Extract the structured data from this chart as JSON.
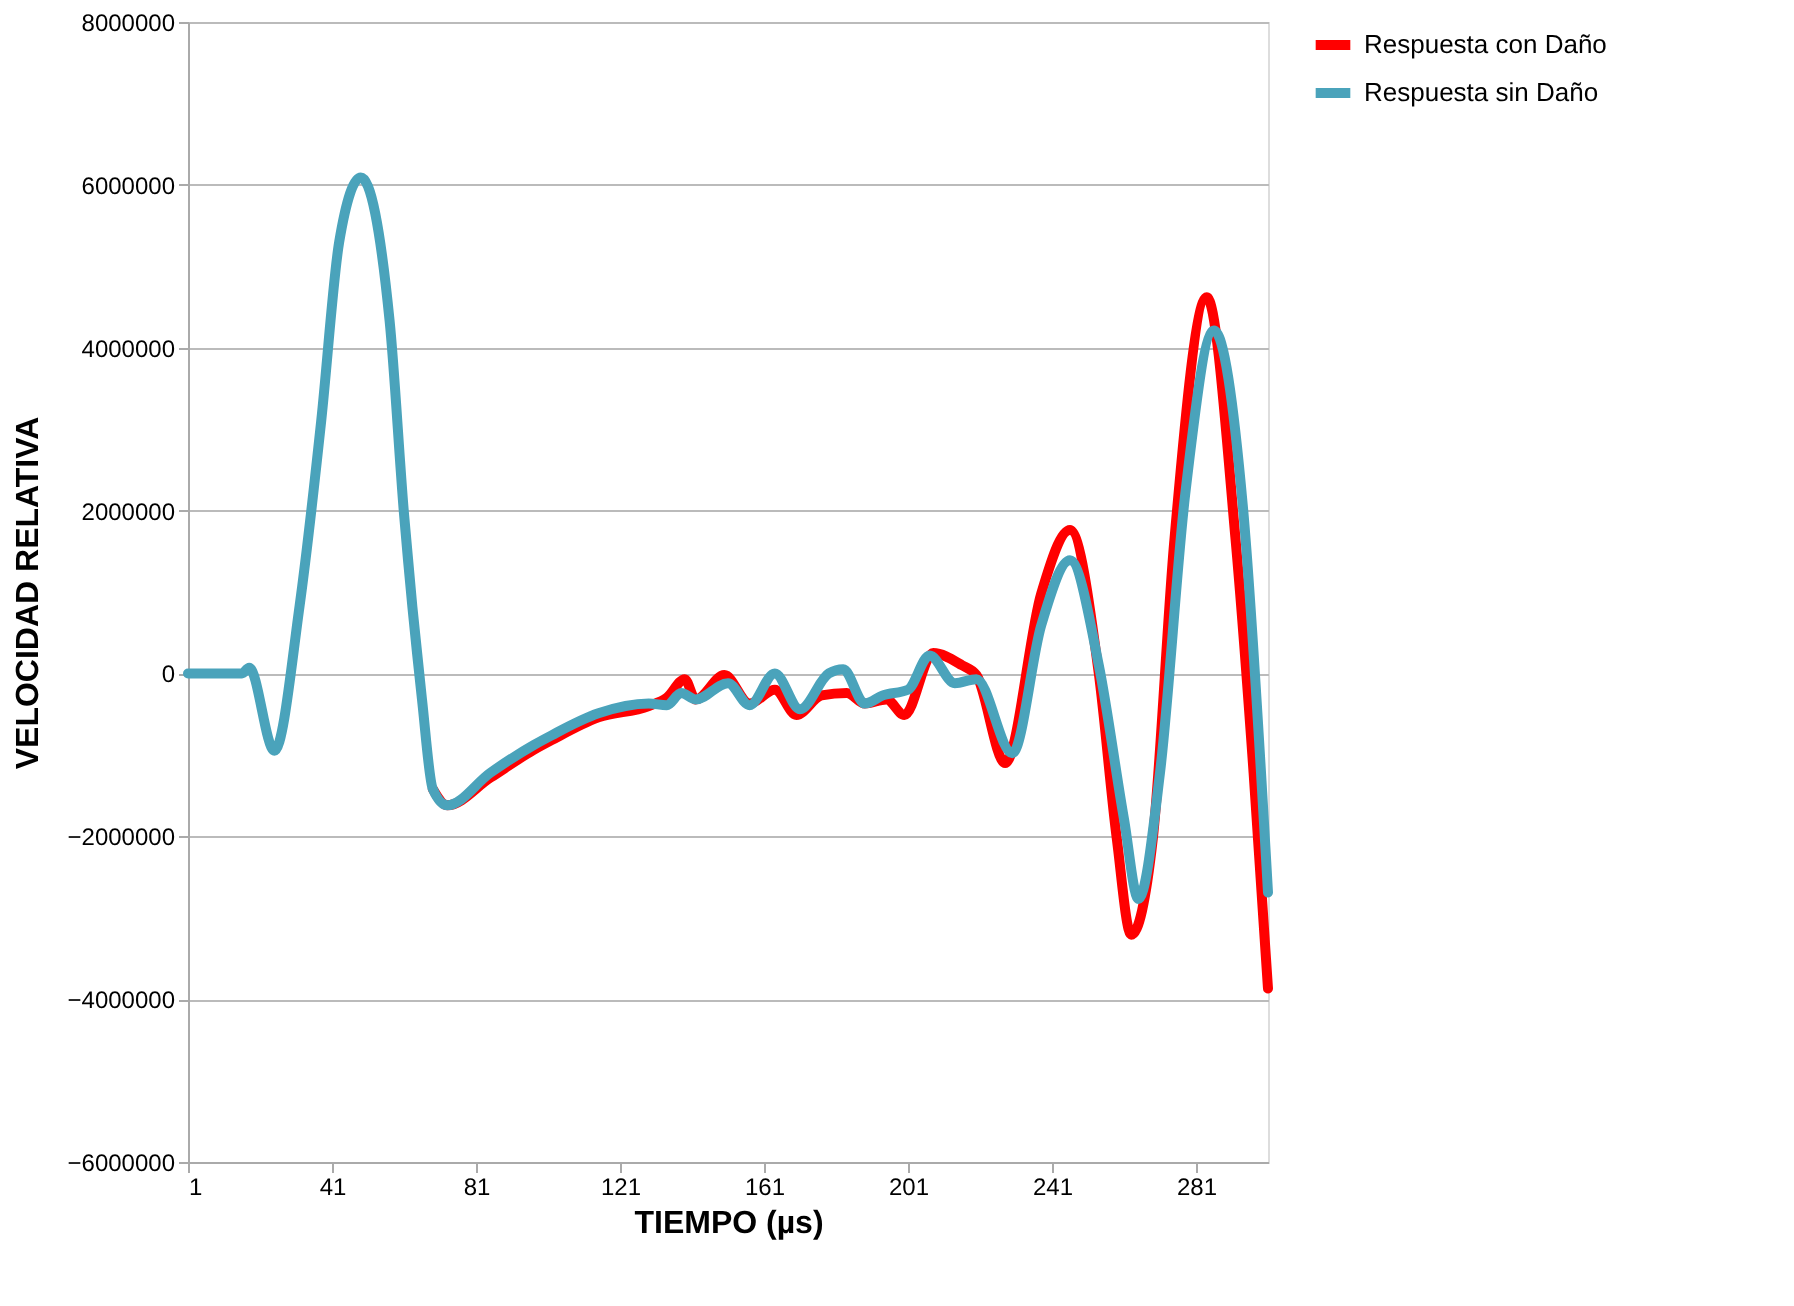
{
  "chart_data": {
    "type": "line",
    "xlabel": "TIEMPO (µs)",
    "ylabel": "VELOCIDAD RELATIVA",
    "xlim": [
      1,
      301
    ],
    "xticks": [
      1,
      41,
      81,
      121,
      161,
      201,
      241,
      281
    ],
    "ylim": [
      -6000000,
      8000000
    ],
    "yticks": [
      -6000000,
      -4000000,
      -2000000,
      0,
      2000000,
      4000000,
      6000000,
      8000000
    ],
    "grid": "y",
    "legend": "right",
    "line_style": "solid",
    "series": [
      {
        "name": "Respuesta con Daño",
        "color": "#ff0000",
        "x": [
          69,
          73,
          85,
          97,
          102,
          115,
          129,
          134,
          139,
          142,
          150,
          157,
          164,
          170,
          177,
          184,
          189,
          195,
          200,
          208,
          216,
          220,
          228,
          238,
          246,
          254,
          259,
          263,
          269,
          275,
          284,
          292,
          297,
          301
        ],
        "values": [
          -1420000,
          -1620000,
          -1280000,
          -940000,
          -820000,
          -540000,
          -400000,
          -300000,
          -70000,
          -320000,
          -20000,
          -370000,
          -200000,
          -510000,
          -270000,
          -240000,
          -370000,
          -320000,
          -510000,
          250000,
          100000,
          -20000,
          -1100000,
          980000,
          1760000,
          0,
          -2030000,
          -3210000,
          -2030000,
          1640000,
          4620000,
          1640000,
          -1220000,
          -3870000
        ]
      },
      {
        "name": "Respuesta sin Daño",
        "color": "#4aa3bb",
        "x": [
          1,
          16,
          18,
          25,
          32,
          38,
          43,
          49,
          57,
          61,
          66,
          69,
          73,
          85,
          97,
          102,
          115,
          129,
          134,
          138,
          142,
          151,
          157,
          164,
          171,
          179,
          183,
          189,
          194,
          201,
          207,
          214,
          220,
          230,
          238,
          246,
          254,
          261,
          265,
          271,
          278,
          286,
          294,
          301
        ],
        "values": [
          0,
          0,
          70000,
          -950000,
          830000,
          3100000,
          5300000,
          6090000,
          4330000,
          1960000,
          -320000,
          -1420000,
          -1620000,
          -1220000,
          -880000,
          -760000,
          -490000,
          -370000,
          -390000,
          -240000,
          -320000,
          -120000,
          -390000,
          0,
          -440000,
          0,
          50000,
          -370000,
          -270000,
          -200000,
          220000,
          -120000,
          -70000,
          -980000,
          590000,
          1390000,
          100000,
          -1790000,
          -2770000,
          -1220000,
          2200000,
          4210000,
          2060000,
          -2690000
        ]
      }
    ]
  }
}
